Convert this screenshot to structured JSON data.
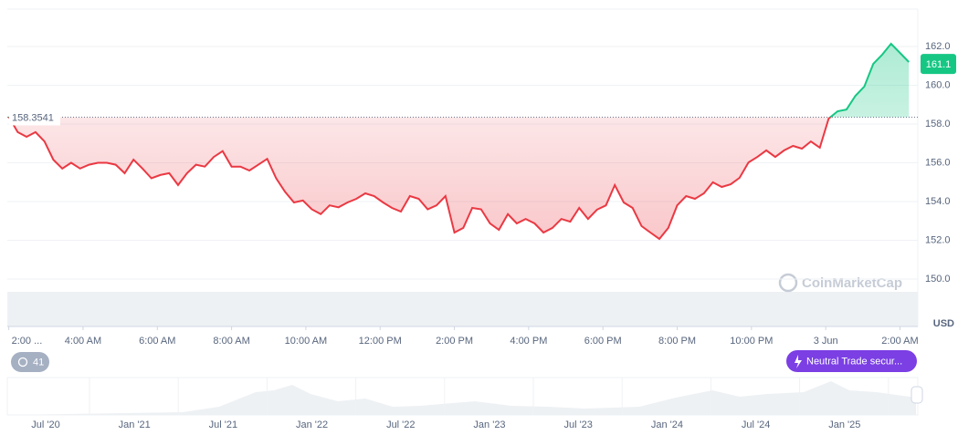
{
  "chart_data": {
    "type": "line",
    "x": [
      2,
      2.24,
      2.48,
      2.72,
      2.96,
      3.2,
      3.44,
      3.68,
      3.92,
      4.16,
      4.4,
      4.64,
      4.88,
      5.12,
      5.36,
      5.6,
      5.84,
      6.08,
      6.32,
      6.56,
      6.8,
      7.04,
      7.28,
      7.52,
      7.76,
      8,
      8.24,
      8.48,
      8.72,
      8.96,
      9.2,
      9.44,
      9.68,
      9.92,
      10.16,
      10.4,
      10.64,
      10.88,
      11.12,
      11.36,
      11.6,
      11.84,
      12.08,
      12.32,
      12.56,
      12.8,
      13.04,
      13.28,
      13.52,
      13.76,
      14,
      14.24,
      14.48,
      14.72,
      14.96,
      15.2,
      15.44,
      15.68,
      15.92,
      16.16,
      16.4,
      16.64,
      16.88,
      17.12,
      17.36,
      17.6,
      17.84,
      18.08,
      18.32,
      18.56,
      18.8,
      19.04,
      19.28,
      19.52,
      19.76,
      20,
      20.24,
      20.48,
      20.72,
      20.96,
      21.2,
      21.44,
      21.68,
      21.92,
      22.16,
      22.4,
      22.64,
      22.88,
      23.12,
      23.36,
      23.6,
      23.84,
      24.08,
      24.32,
      24.56,
      24.8,
      25.04,
      25.28,
      25.52,
      25.76,
      26,
      26.24
    ],
    "values": [
      158.38,
      157.58,
      157.34,
      157.58,
      157.1,
      156.16,
      155.7,
      156.0,
      155.7,
      155.9,
      156.0,
      156.0,
      155.9,
      155.46,
      156.16,
      155.7,
      155.2,
      155.37,
      155.46,
      154.85,
      155.46,
      155.9,
      155.8,
      156.3,
      156.6,
      155.8,
      155.8,
      155.6,
      155.9,
      156.2,
      155.2,
      154.5,
      153.95,
      154.05,
      153.6,
      153.35,
      153.8,
      153.7,
      153.95,
      154.14,
      154.42,
      154.28,
      153.95,
      153.67,
      153.48,
      154.28,
      154.14,
      153.6,
      153.8,
      154.28,
      152.4,
      152.64,
      153.67,
      153.6,
      152.87,
      152.54,
      153.35,
      152.87,
      153.1,
      152.87,
      152.4,
      152.64,
      153.1,
      152.96,
      153.67,
      153.1,
      153.58,
      153.8,
      154.85,
      153.95,
      153.67,
      152.73,
      152.4,
      152.07,
      152.64,
      153.8,
      154.28,
      154.14,
      154.42,
      154.99,
      154.75,
      154.89,
      155.22,
      156.02,
      156.3,
      156.64,
      156.3,
      156.64,
      156.87,
      156.73,
      157.1,
      156.78,
      158.28,
      158.66,
      158.75,
      159.46,
      159.93,
      161.1,
      161.58,
      162.14,
      161.67,
      161.2
    ],
    "baseline": 158.3541,
    "current_price": 161.1,
    "colors": {
      "above": "#16c784",
      "below": "#ea3943"
    },
    "xlim": [
      1.96,
      26.48
    ],
    "xticks": [
      {
        "value": 2,
        "label": "2:00 ..."
      },
      {
        "value": 4,
        "label": "4:00 AM"
      },
      {
        "value": 6,
        "label": "6:00 AM"
      },
      {
        "value": 8,
        "label": "8:00 AM"
      },
      {
        "value": 10,
        "label": "10:00 AM"
      },
      {
        "value": 12,
        "label": "12:00 PM"
      },
      {
        "value": 14,
        "label": "2:00 PM"
      },
      {
        "value": 16,
        "label": "4:00 PM"
      },
      {
        "value": 18,
        "label": "6:00 PM"
      },
      {
        "value": 20,
        "label": "8:00 PM"
      },
      {
        "value": 22,
        "label": "10:00 PM"
      },
      {
        "value": 24,
        "label": "3 Jun"
      },
      {
        "value": 26,
        "label": "2:00 AM"
      }
    ],
    "ylim": [
      147.55,
      163.93
    ],
    "yticks": [
      {
        "value": 150,
        "label": "150.0"
      },
      {
        "value": 152,
        "label": "152.0"
      },
      {
        "value": 154,
        "label": "154.0"
      },
      {
        "value": 156,
        "label": "156.0"
      },
      {
        "value": 158,
        "label": "158.0"
      },
      {
        "value": 160,
        "label": "160.0"
      },
      {
        "value": 162,
        "label": "162.0"
      }
    ],
    "grid": true,
    "currency": "USD",
    "watermark": "CoinMarketCap"
  },
  "badge": "41",
  "button": "Neutral Trade secur...",
  "navigator": {
    "labels": [
      "Jul '20",
      "Jan '21",
      "Jul '21",
      "Jan '22",
      "Jul '22",
      "Jan '23",
      "Jul '23",
      "Jan '24",
      "Jul '24",
      "Jan '25"
    ]
  }
}
